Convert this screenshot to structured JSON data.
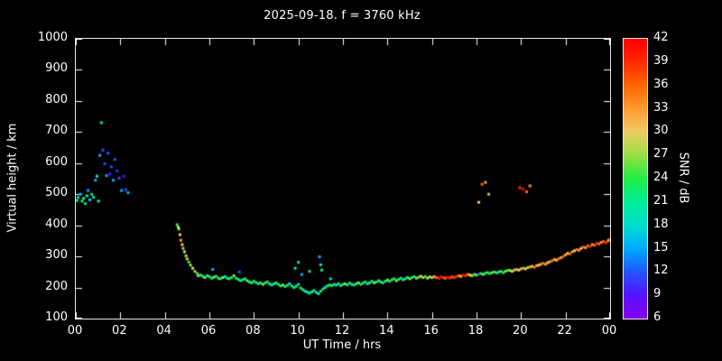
{
  "chart_data": {
    "type": "scatter",
    "title": "2025-09-18. f = 3760 kHz",
    "xlabel": "UT Time / hrs",
    "ylabel": "Virtual height / km",
    "xlim": [
      0,
      24
    ],
    "ylim": [
      100,
      1000
    ],
    "grid": false,
    "background": "#000000",
    "axis_color": "#ffffff",
    "marker_size": 3,
    "x_ticks": [
      {
        "v": 0,
        "label": "00"
      },
      {
        "v": 2,
        "label": "02"
      },
      {
        "v": 4,
        "label": "04"
      },
      {
        "v": 6,
        "label": "06"
      },
      {
        "v": 8,
        "label": "08"
      },
      {
        "v": 10,
        "label": "10"
      },
      {
        "v": 12,
        "label": "12"
      },
      {
        "v": 14,
        "label": "14"
      },
      {
        "v": 16,
        "label": "16"
      },
      {
        "v": 18,
        "label": "18"
      },
      {
        "v": 20,
        "label": "20"
      },
      {
        "v": 22,
        "label": "22"
      },
      {
        "v": 24,
        "label": "00"
      }
    ],
    "y_ticks": [
      {
        "v": 100,
        "label": "100"
      },
      {
        "v": 200,
        "label": "200"
      },
      {
        "v": 300,
        "label": "300"
      },
      {
        "v": 400,
        "label": "400"
      },
      {
        "v": 500,
        "label": "500"
      },
      {
        "v": 600,
        "label": "600"
      },
      {
        "v": 700,
        "label": "700"
      },
      {
        "v": 800,
        "label": "800"
      },
      {
        "v": 900,
        "label": "900"
      },
      {
        "v": 1000,
        "label": "1000"
      }
    ],
    "colorbar": {
      "label": "SNR / dB",
      "min": 6,
      "max": 42,
      "ticks": [
        6,
        9,
        12,
        15,
        18,
        21,
        24,
        27,
        30,
        33,
        36,
        39,
        42
      ],
      "stops": [
        [
          6,
          "#8800ee"
        ],
        [
          9,
          "#5511ff"
        ],
        [
          12,
          "#2255ff"
        ],
        [
          15,
          "#00aaff"
        ],
        [
          18,
          "#00ddcc"
        ],
        [
          21,
          "#00ee99"
        ],
        [
          24,
          "#22ee44"
        ],
        [
          27,
          "#99dd44"
        ],
        [
          30,
          "#eecc66"
        ],
        [
          33,
          "#ff9933"
        ],
        [
          36,
          "#ff6600"
        ],
        [
          39,
          "#ff2a00"
        ],
        [
          42,
          "#ff0000"
        ]
      ]
    },
    "points": [
      [
        0.05,
        480,
        21
      ],
      [
        0.1,
        490,
        18
      ],
      [
        0.2,
        500,
        15
      ],
      [
        0.28,
        478,
        24
      ],
      [
        0.35,
        487,
        21
      ],
      [
        0.42,
        470,
        18
      ],
      [
        0.5,
        495,
        21
      ],
      [
        0.55,
        512,
        15
      ],
      [
        0.63,
        482,
        18
      ],
      [
        0.72,
        500,
        21
      ],
      [
        0.8,
        490,
        18
      ],
      [
        0.88,
        545,
        15
      ],
      [
        0.95,
        558,
        18
      ],
      [
        1.02,
        478,
        21
      ],
      [
        1.08,
        625,
        15
      ],
      [
        1.15,
        730,
        21
      ],
      [
        1.22,
        642,
        12
      ],
      [
        1.3,
        598,
        12
      ],
      [
        1.38,
        560,
        15
      ],
      [
        1.45,
        632,
        12
      ],
      [
        1.52,
        565,
        9
      ],
      [
        1.6,
        588,
        12
      ],
      [
        1.68,
        545,
        15
      ],
      [
        1.75,
        612,
        12
      ],
      [
        1.85,
        575,
        9
      ],
      [
        1.95,
        552,
        12
      ],
      [
        2.05,
        512,
        15
      ],
      [
        2.15,
        558,
        9
      ],
      [
        2.25,
        515,
        12
      ],
      [
        2.35,
        505,
        15
      ],
      [
        4.55,
        402,
        24
      ],
      [
        4.6,
        394,
        30
      ],
      [
        4.63,
        388,
        27
      ],
      [
        4.68,
        370,
        30
      ],
      [
        4.72,
        352,
        33
      ],
      [
        4.78,
        338,
        30
      ],
      [
        4.82,
        326,
        27
      ],
      [
        4.88,
        315,
        30
      ],
      [
        4.95,
        302,
        27
      ],
      [
        5.0,
        292,
        30
      ],
      [
        5.08,
        282,
        24
      ],
      [
        5.15,
        272,
        27
      ],
      [
        5.25,
        262,
        30
      ],
      [
        5.35,
        252,
        27
      ],
      [
        5.45,
        245,
        24
      ],
      [
        5.5,
        238,
        27
      ],
      [
        5.6,
        240,
        21
      ],
      [
        5.7,
        236,
        24
      ],
      [
        5.8,
        232,
        27
      ],
      [
        5.9,
        238,
        18
      ],
      [
        6.0,
        235,
        24
      ],
      [
        6.1,
        230,
        21
      ],
      [
        6.2,
        233,
        27
      ],
      [
        6.3,
        236,
        24
      ],
      [
        6.4,
        230,
        21
      ],
      [
        6.5,
        228,
        24
      ],
      [
        6.6,
        232,
        27
      ],
      [
        6.7,
        235,
        18
      ],
      [
        6.8,
        230,
        24
      ],
      [
        6.9,
        228,
        21
      ],
      [
        7.0,
        232,
        24
      ],
      [
        7.1,
        238,
        27
      ],
      [
        7.2,
        230,
        21
      ],
      [
        7.3,
        226,
        24
      ],
      [
        7.4,
        222,
        18
      ],
      [
        7.5,
        225,
        24
      ],
      [
        7.6,
        228,
        21
      ],
      [
        7.7,
        222,
        27
      ],
      [
        7.8,
        218,
        24
      ],
      [
        7.9,
        215,
        21
      ],
      [
        8.0,
        220,
        24
      ],
      [
        8.1,
        216,
        18
      ],
      [
        8.2,
        212,
        24
      ],
      [
        8.3,
        215,
        21
      ],
      [
        8.4,
        210,
        27
      ],
      [
        8.5,
        214,
        24
      ],
      [
        8.6,
        218,
        21
      ],
      [
        8.7,
        212,
        24
      ],
      [
        8.8,
        208,
        18
      ],
      [
        8.9,
        212,
        21
      ],
      [
        9.0,
        215,
        24
      ],
      [
        9.1,
        210,
        21
      ],
      [
        9.2,
        205,
        24
      ],
      [
        9.3,
        208,
        27
      ],
      [
        9.4,
        203,
        21
      ],
      [
        9.5,
        207,
        24
      ],
      [
        9.6,
        212,
        18
      ],
      [
        9.7,
        205,
        21
      ],
      [
        9.8,
        200,
        24
      ],
      [
        9.9,
        204,
        21
      ],
      [
        10.0,
        210,
        18
      ],
      [
        10.1,
        198,
        21
      ],
      [
        10.2,
        193,
        24
      ],
      [
        10.3,
        188,
        21
      ],
      [
        10.4,
        185,
        18
      ],
      [
        10.5,
        182,
        21
      ],
      [
        10.6,
        186,
        24
      ],
      [
        10.7,
        190,
        21
      ],
      [
        10.8,
        184,
        18
      ],
      [
        10.9,
        180,
        21
      ],
      [
        11.0,
        188,
        24
      ],
      [
        11.1,
        195,
        21
      ],
      [
        11.2,
        200,
        18
      ],
      [
        11.3,
        205,
        21
      ],
      [
        11.4,
        208,
        24
      ],
      [
        6.15,
        258,
        15
      ],
      [
        7.35,
        250,
        12
      ],
      [
        9.85,
        262,
        21
      ],
      [
        10.0,
        281,
        18
      ],
      [
        10.15,
        242,
        15
      ],
      [
        10.5,
        252,
        21
      ],
      [
        10.95,
        299,
        15
      ],
      [
        11.0,
        273,
        18
      ],
      [
        11.05,
        256,
        21
      ],
      [
        11.45,
        228,
        18
      ],
      [
        11.5,
        206,
        24
      ],
      [
        11.6,
        210,
        21
      ],
      [
        11.7,
        208,
        18
      ],
      [
        11.8,
        212,
        24
      ],
      [
        11.9,
        206,
        21
      ],
      [
        12.0,
        210,
        24
      ],
      [
        12.1,
        212,
        27
      ],
      [
        12.2,
        208,
        21
      ],
      [
        12.3,
        214,
        24
      ],
      [
        12.4,
        210,
        18
      ],
      [
        12.5,
        208,
        24
      ],
      [
        12.6,
        212,
        21
      ],
      [
        12.7,
        215,
        27
      ],
      [
        12.8,
        210,
        24
      ],
      [
        12.9,
        214,
        21
      ],
      [
        13.0,
        218,
        24
      ],
      [
        13.1,
        212,
        18
      ],
      [
        13.2,
        215,
        24
      ],
      [
        13.3,
        220,
        21
      ],
      [
        13.4,
        215,
        27
      ],
      [
        13.5,
        218,
        24
      ],
      [
        13.6,
        222,
        21
      ],
      [
        13.7,
        218,
        24
      ],
      [
        13.8,
        215,
        18
      ],
      [
        13.9,
        220,
        24
      ],
      [
        14.0,
        224,
        27
      ],
      [
        14.1,
        220,
        21
      ],
      [
        14.2,
        225,
        24
      ],
      [
        14.3,
        228,
        21
      ],
      [
        14.4,
        222,
        27
      ],
      [
        14.5,
        226,
        24
      ],
      [
        14.6,
        230,
        21
      ],
      [
        14.7,
        225,
        24
      ],
      [
        14.8,
        228,
        18
      ],
      [
        14.9,
        232,
        24
      ],
      [
        15.0,
        228,
        27
      ],
      [
        15.1,
        232,
        24
      ],
      [
        15.2,
        235,
        21
      ],
      [
        15.3,
        230,
        27
      ],
      [
        15.4,
        233,
        24
      ],
      [
        15.5,
        236,
        30
      ],
      [
        15.6,
        232,
        27
      ],
      [
        15.7,
        235,
        24
      ],
      [
        15.8,
        230,
        27
      ],
      [
        15.9,
        234,
        30
      ],
      [
        16.0,
        232,
        27
      ],
      [
        16.1,
        235,
        33
      ],
      [
        16.2,
        232,
        36
      ],
      [
        16.3,
        230,
        39
      ],
      [
        16.4,
        234,
        42
      ],
      [
        16.5,
        232,
        39
      ],
      [
        16.6,
        230,
        36
      ],
      [
        16.7,
        233,
        42
      ],
      [
        16.8,
        231,
        39
      ],
      [
        16.9,
        234,
        36
      ],
      [
        17.0,
        232,
        39
      ],
      [
        17.1,
        235,
        39
      ],
      [
        17.2,
        238,
        36
      ],
      [
        17.3,
        236,
        30
      ],
      [
        17.4,
        240,
        42
      ],
      [
        17.5,
        238,
        39
      ],
      [
        17.6,
        242,
        36
      ],
      [
        17.7,
        240,
        30
      ],
      [
        17.8,
        238,
        27
      ],
      [
        17.9,
        242,
        24
      ],
      [
        18.0,
        240,
        27
      ],
      [
        18.1,
        243,
        12
      ],
      [
        18.2,
        245,
        24
      ],
      [
        18.3,
        242,
        27
      ],
      [
        18.4,
        246,
        24
      ],
      [
        18.5,
        248,
        21
      ],
      [
        18.6,
        245,
        24
      ],
      [
        18.7,
        248,
        27
      ],
      [
        18.8,
        250,
        24
      ],
      [
        18.9,
        247,
        21
      ],
      [
        19.0,
        250,
        24
      ],
      [
        19.1,
        252,
        21
      ],
      [
        19.2,
        248,
        24
      ],
      [
        19.3,
        252,
        27
      ],
      [
        19.4,
        255,
        24
      ],
      [
        18.1,
        474,
        30
      ],
      [
        18.25,
        532,
        36
      ],
      [
        18.4,
        538,
        33
      ],
      [
        18.55,
        500,
        27
      ],
      [
        19.95,
        521,
        39
      ],
      [
        20.1,
        516,
        42
      ],
      [
        20.25,
        508,
        36
      ],
      [
        20.4,
        527,
        33
      ],
      [
        19.5,
        255,
        27
      ],
      [
        19.6,
        252,
        30
      ],
      [
        19.7,
        256,
        27
      ],
      [
        19.8,
        258,
        33
      ],
      [
        19.9,
        256,
        30
      ],
      [
        20.0,
        260,
        27
      ],
      [
        20.1,
        262,
        33
      ],
      [
        20.2,
        260,
        30
      ],
      [
        20.3,
        264,
        27
      ],
      [
        20.4,
        266,
        33
      ],
      [
        20.5,
        268,
        30
      ],
      [
        20.6,
        265,
        36
      ],
      [
        20.7,
        270,
        33
      ],
      [
        20.8,
        272,
        30
      ],
      [
        20.9,
        275,
        33
      ],
      [
        21.0,
        278,
        36
      ],
      [
        21.1,
        275,
        33
      ],
      [
        21.2,
        280,
        30
      ],
      [
        21.3,
        283,
        33
      ],
      [
        21.4,
        286,
        36
      ],
      [
        21.5,
        290,
        33
      ],
      [
        21.6,
        288,
        30
      ],
      [
        21.7,
        293,
        36
      ],
      [
        21.8,
        296,
        33
      ],
      [
        21.9,
        300,
        36
      ],
      [
        22.0,
        305,
        33
      ],
      [
        22.1,
        310,
        30
      ],
      [
        22.2,
        308,
        36
      ],
      [
        22.3,
        315,
        33
      ],
      [
        22.4,
        318,
        30
      ],
      [
        22.5,
        322,
        36
      ],
      [
        22.6,
        320,
        33
      ],
      [
        22.7,
        326,
        30
      ],
      [
        22.8,
        330,
        36
      ],
      [
        22.9,
        328,
        33
      ],
      [
        23.0,
        334,
        36
      ],
      [
        23.1,
        332,
        39
      ],
      [
        23.2,
        338,
        33
      ],
      [
        23.3,
        336,
        36
      ],
      [
        23.4,
        342,
        39
      ],
      [
        23.5,
        340,
        36
      ],
      [
        23.6,
        345,
        33
      ],
      [
        23.7,
        348,
        36
      ],
      [
        23.8,
        344,
        39
      ],
      [
        23.9,
        350,
        36
      ],
      [
        23.95,
        352,
        33
      ],
      [
        24.0,
        355,
        36
      ]
    ]
  }
}
